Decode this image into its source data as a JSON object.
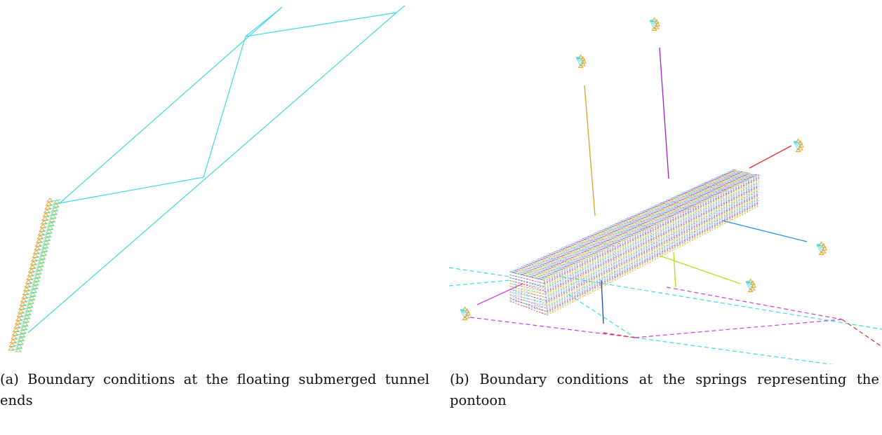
{
  "figures": [
    {
      "caption": "(a) Boundary conditions at the floating submerged tunnel ends"
    },
    {
      "caption": "(b) Boundary conditions at the springs representing the pontoon"
    }
  ]
}
